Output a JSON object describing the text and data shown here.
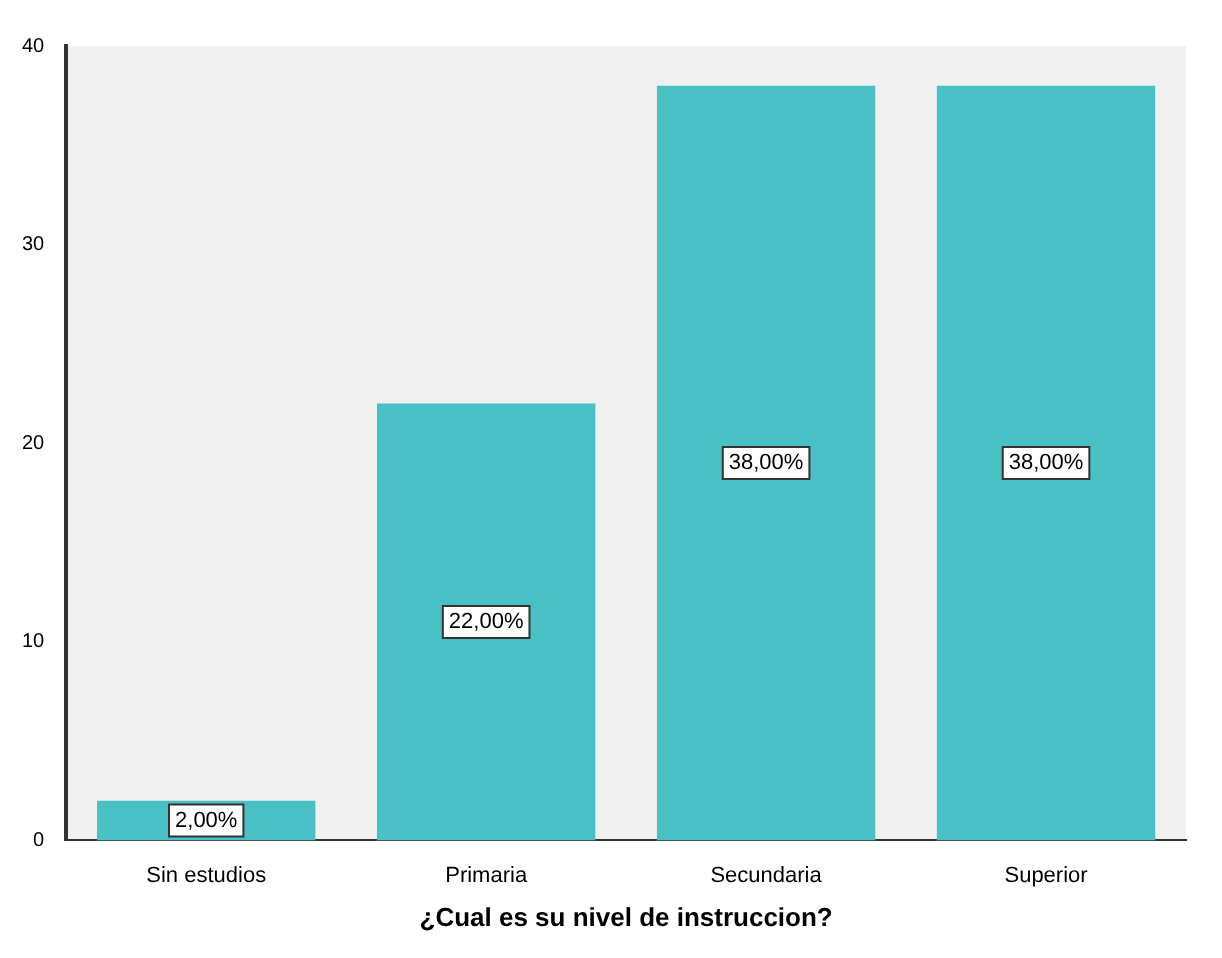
{
  "chart_data": {
    "type": "bar",
    "xlabel": "¿Cual es su nivel de instruccion?",
    "categories": [
      "Sin estudios",
      "Primaria",
      "Secundaria",
      "Superior"
    ],
    "values": [
      2,
      22,
      38,
      38
    ],
    "value_labels": [
      "2,00%",
      "22,00%",
      "38,00%",
      "38,00%"
    ],
    "color": "#48c0c4",
    "ylim": [
      0,
      40
    ],
    "yticks": [
      0,
      10,
      20,
      30,
      40
    ],
    "grid": false
  }
}
